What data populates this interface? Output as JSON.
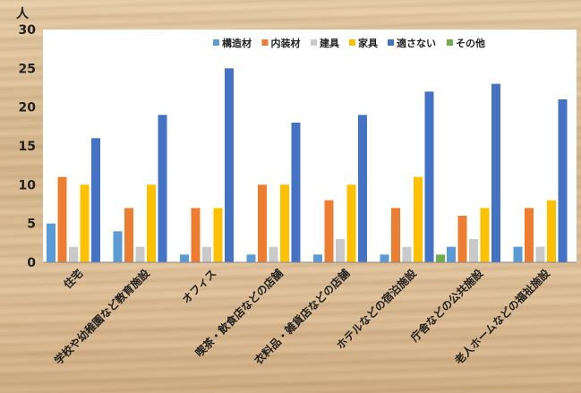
{
  "chart_data": {
    "type": "bar",
    "ylabel": "人",
    "ylim": [
      0,
      30
    ],
    "yticks": [
      0,
      5,
      10,
      15,
      20,
      25,
      30
    ],
    "grid": false,
    "legend_position": "top-right",
    "categories": [
      "住宅",
      "学校や幼稚園など教育施設",
      "オフィス",
      "喫茶・飲食店などの店舗",
      "衣料品・雑貨店などの店舗",
      "ホテルなどの宿泊施設",
      "庁舎などの公共施設",
      "老人ホームなどの福祉施設"
    ],
    "series": [
      {
        "name": "構造材",
        "color": "#5b9bd5",
        "values": [
          5,
          4,
          1,
          1,
          1,
          1,
          2,
          2
        ]
      },
      {
        "name": "内装材",
        "color": "#ed7d31",
        "values": [
          11,
          7,
          7,
          10,
          8,
          7,
          6,
          7
        ]
      },
      {
        "name": "建具",
        "color": "#c9c9c9",
        "values": [
          2,
          2,
          2,
          2,
          3,
          2,
          3,
          2
        ]
      },
      {
        "name": "家具",
        "color": "#ffc000",
        "values": [
          10,
          10,
          7,
          10,
          10,
          11,
          7,
          8
        ]
      },
      {
        "name": "適さない",
        "color": "#4472c4",
        "values": [
          16,
          19,
          25,
          18,
          19,
          22,
          23,
          21
        ]
      },
      {
        "name": "その他",
        "color": "#70ad47",
        "values": [
          0,
          0,
          0,
          0,
          0,
          1,
          0,
          0
        ]
      }
    ]
  }
}
